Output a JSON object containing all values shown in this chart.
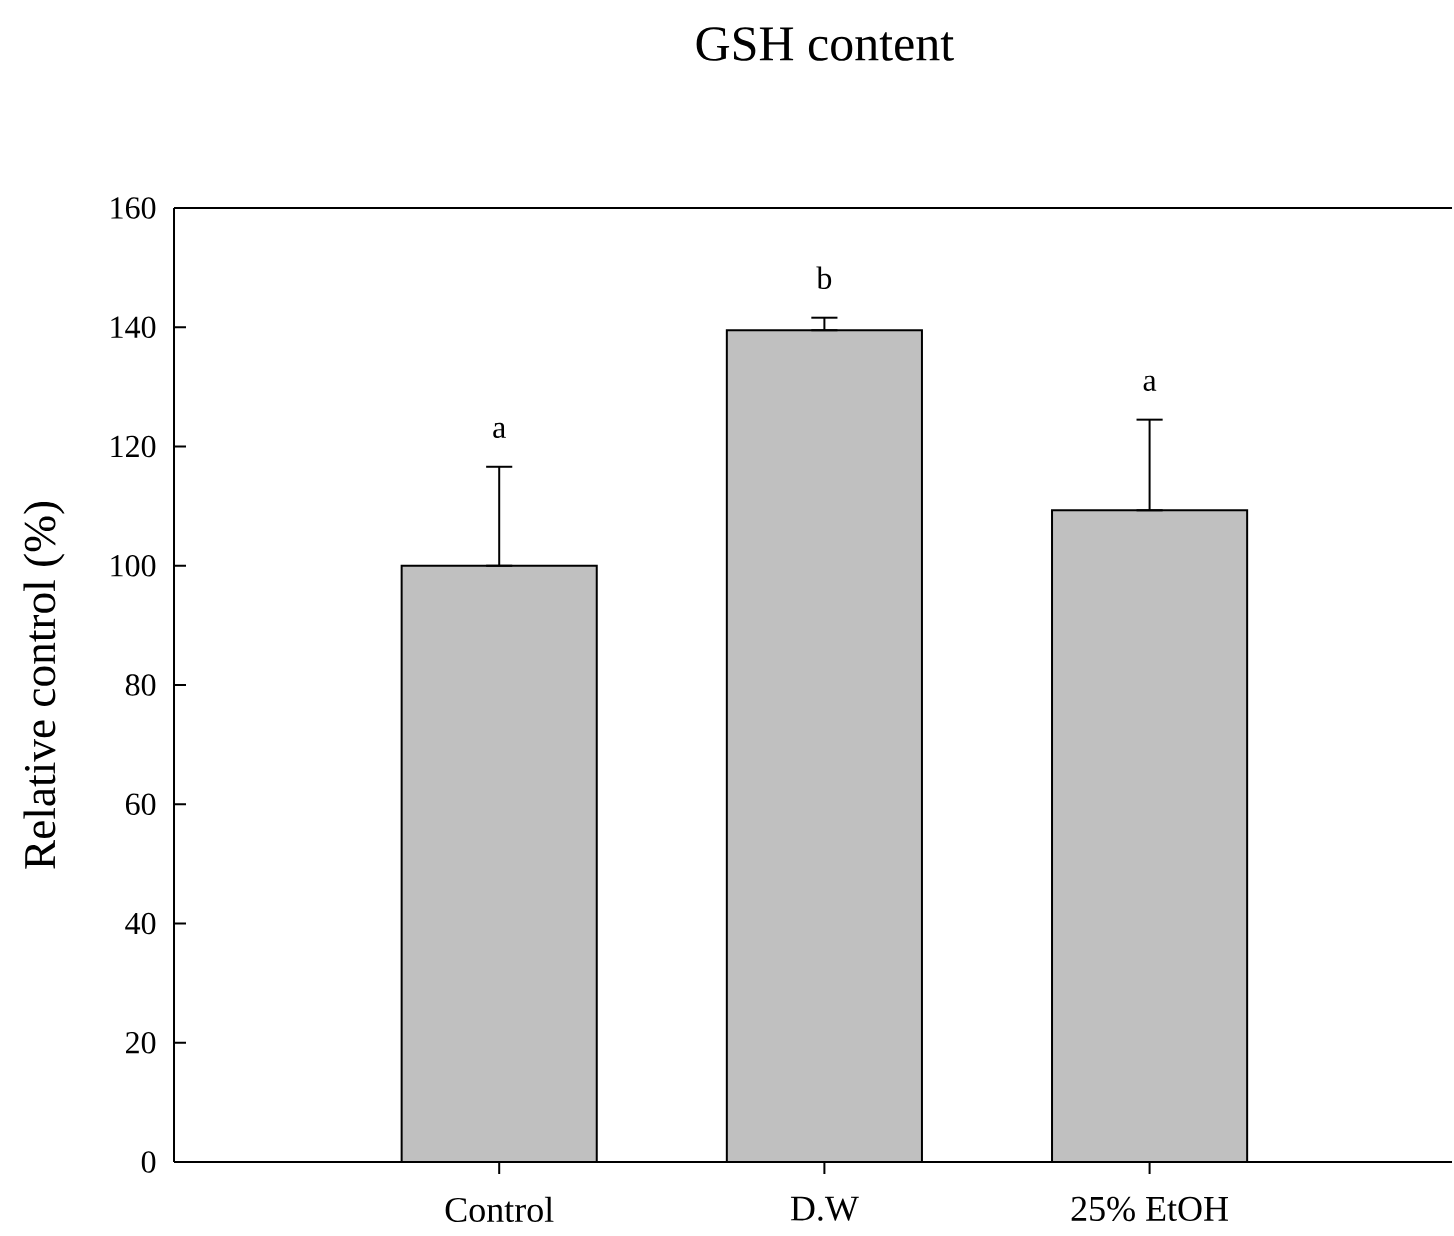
{
  "chart_data": {
    "type": "bar",
    "title": "GSH content",
    "ylabel": "Relative control (%)",
    "categories": [
      "Control",
      "D.W",
      "25% EtOH"
    ],
    "values": [
      100,
      139.5,
      109.3
    ],
    "color": "#c0c0c0",
    "errors": [
      [
        100,
        116.6
      ],
      [
        139.5,
        141.6
      ],
      [
        109.3,
        124.5
      ]
    ],
    "ylim": [
      0,
      160
    ],
    "yticks": [
      0,
      20,
      40,
      60,
      80,
      100,
      120,
      140,
      160
    ],
    "annotations": [
      "a",
      "b",
      "a"
    ]
  }
}
